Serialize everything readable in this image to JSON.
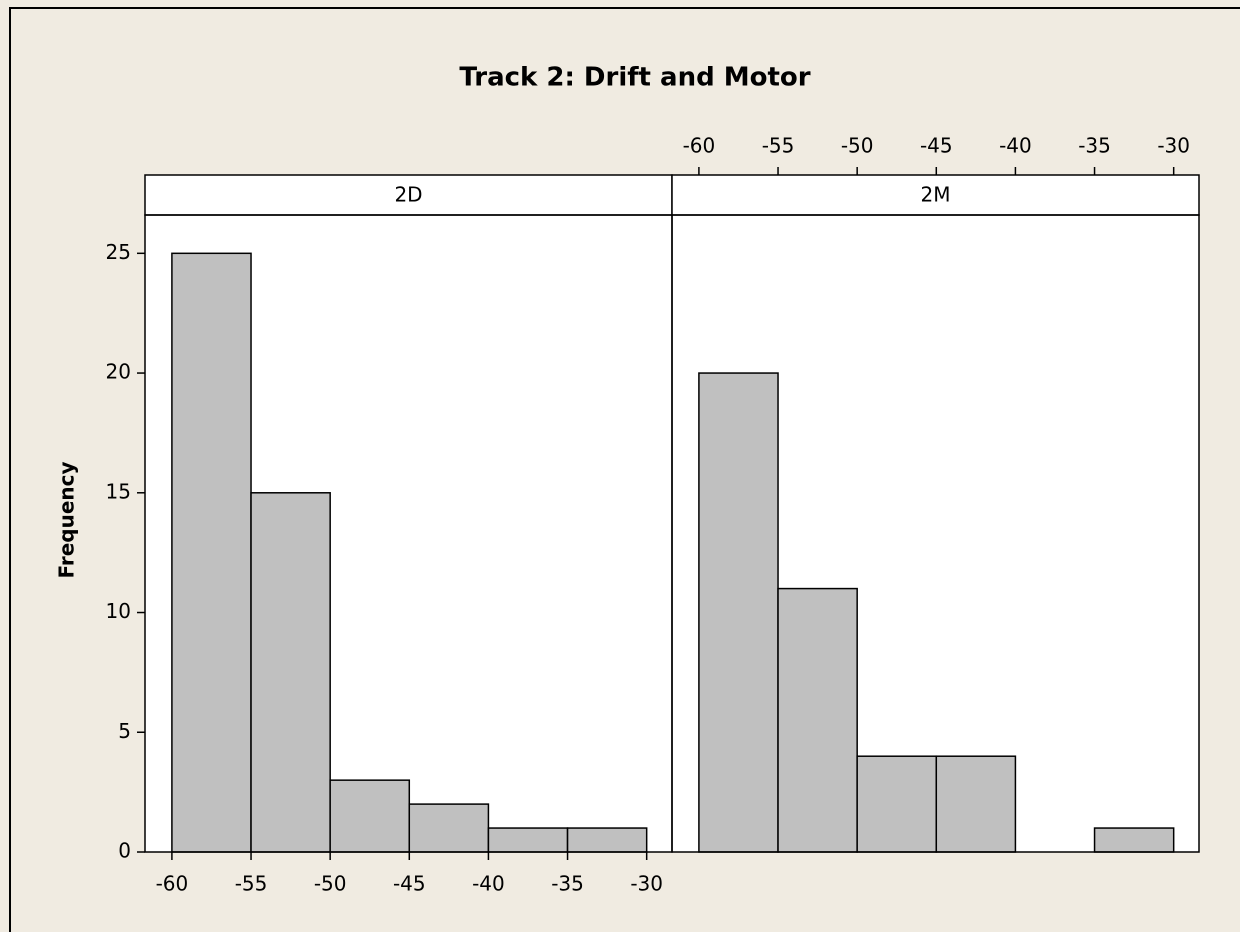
{
  "chart_data": {
    "type": "histogram",
    "title": "Track 2: Drift and Motor",
    "ylabel": "Frequency",
    "bins": [
      -60,
      -55,
      -50,
      -45,
      -40,
      -35,
      -30
    ],
    "panels": [
      {
        "name": "2D",
        "values": [
          25,
          15,
          3,
          2,
          1,
          1
        ]
      },
      {
        "name": "2M",
        "values": [
          20,
          11,
          4,
          4,
          0,
          1
        ]
      }
    ],
    "color": "#c0c0c0",
    "xlim": [
      -61.7,
      -28.4
    ],
    "xticks": [
      -60,
      -55,
      -50,
      -45,
      -40,
      -35,
      -30
    ],
    "ylim": [
      0,
      26.6
    ],
    "yticks": [
      0,
      5,
      10,
      15,
      20,
      25
    ]
  }
}
